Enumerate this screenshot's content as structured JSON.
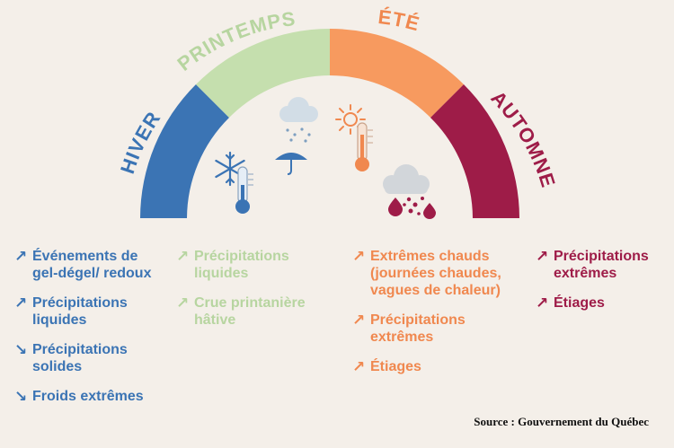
{
  "seasons": {
    "hiver": "HIVER",
    "printemps": "PRINTEMPS",
    "ete": "ÉTÉ",
    "automne": "AUTOMNE"
  },
  "colors": {
    "hiver": "#3b74b4",
    "printemps": "#c5dfae",
    "ete": "#f79a5f",
    "automne": "#9e1c48"
  },
  "icons": {
    "hiver": "snowflake-thermometer-cold-icon",
    "printemps": "rain-cloud-umbrella-icon",
    "ete": "sun-thermometer-hot-icon",
    "automne": "storm-cloud-heavy-rain-icon"
  },
  "columns": {
    "hiver": [
      {
        "arrow": "↗",
        "text": "Événements de gel-dégel/ redoux"
      },
      {
        "arrow": "↗",
        "text": "Précipitations liquides"
      },
      {
        "arrow": "↘",
        "text": "Précipitations solides"
      },
      {
        "arrow": "↘",
        "text": "Froids extrêmes"
      }
    ],
    "printemps": [
      {
        "arrow": "↗",
        "text": "Précipitations liquides"
      },
      {
        "arrow": "↗",
        "text": "Crue printanière hâtive"
      }
    ],
    "ete": [
      {
        "arrow": "↗",
        "text": "Extrêmes chauds (journées chaudes, vagues de chaleur)"
      },
      {
        "arrow": "↗",
        "text": "Précipitations extrêmes"
      },
      {
        "arrow": "↗",
        "text": "Étiages"
      }
    ],
    "automne": [
      {
        "arrow": "↗",
        "text": "Précipitations extrêmes"
      },
      {
        "arrow": "↗",
        "text": "Étiages"
      }
    ]
  },
  "source": "Source : Gouvernement du Québec"
}
